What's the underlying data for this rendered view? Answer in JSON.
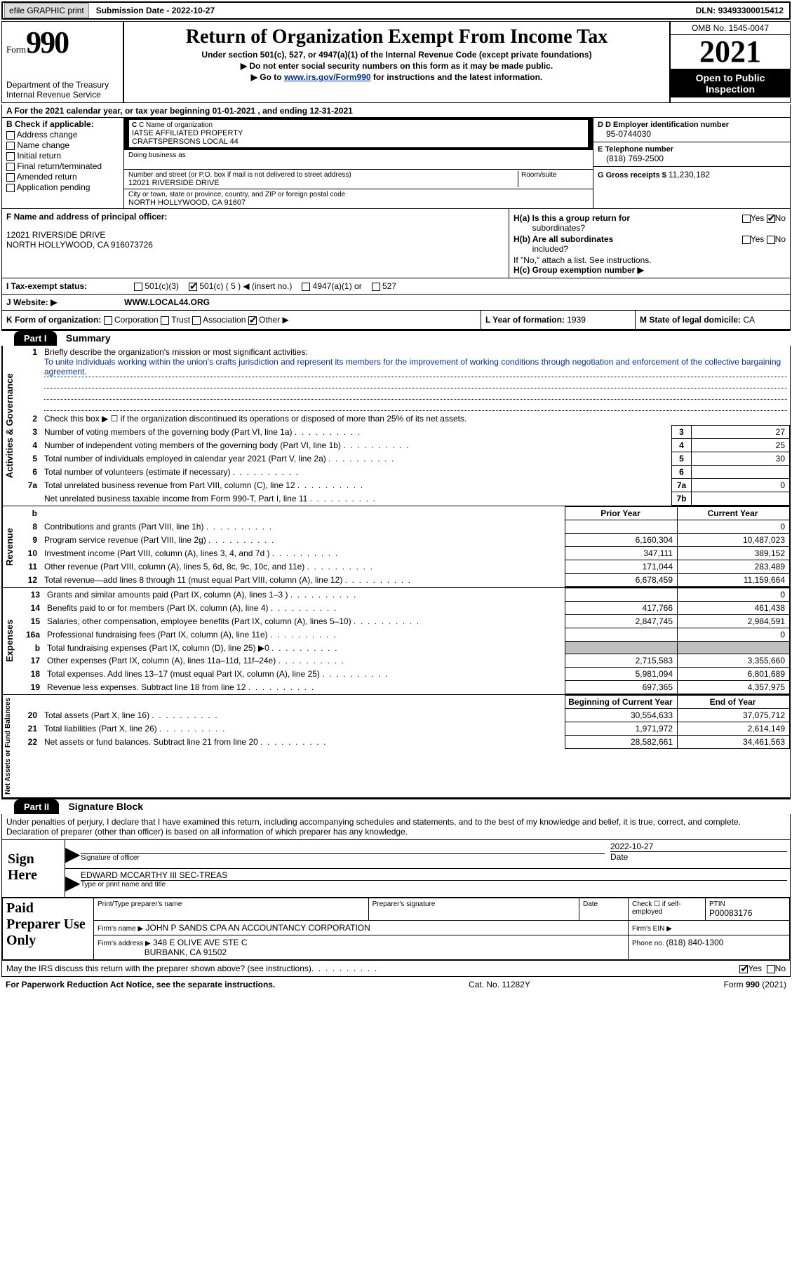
{
  "topbar": {
    "efile_btn": "efile GRAPHIC print",
    "submission_date_label": "Submission Date - ",
    "submission_date": "2022-10-27",
    "dln_label": "DLN: ",
    "dln": "93493300015412"
  },
  "header": {
    "form_label": "Form",
    "form_number": "990",
    "dept": "Department of the Treasury",
    "irs": "Internal Revenue Service",
    "title": "Return of Organization Exempt From Income Tax",
    "sub": "Under section 501(c), 527, or 4947(a)(1) of the Internal Revenue Code (except private foundations)",
    "arrow1": "Do not enter social security numbers on this form as it may be made public.",
    "arrow2_prefix": "Go to ",
    "arrow2_link": "www.irs.gov/Form990",
    "arrow2_suffix": " for instructions and the latest information.",
    "omb": "OMB No. 1545-0047",
    "year": "2021",
    "inspection1": "Open to Public",
    "inspection2": "Inspection"
  },
  "lineA": {
    "text_prefix": "A For the 2021 calendar year, or tax year beginning ",
    "begin": "01-01-2021",
    "mid": " , and ending ",
    "end": "12-31-2021"
  },
  "colB": {
    "header": "B Check if applicable:",
    "items": [
      "Address change",
      "Name change",
      "Initial return",
      "Final return/terminated",
      "Amended return",
      "Application pending"
    ]
  },
  "colC": {
    "name_label": "C Name of organization",
    "name1": "IATSE AFFILIATED PROPERTY",
    "name2": "CRAFTSPERSONS LOCAL 44",
    "dba_label": "Doing business as",
    "addr_label": "Number and street (or P.O. box if mail is not delivered to street address)",
    "room_label": "Room/suite",
    "addr": "12021 RIVERSIDE DRIVE",
    "city_label": "City or town, state or province, country, and ZIP or foreign postal code",
    "city": "NORTH HOLLYWOOD, CA  91607"
  },
  "colD": {
    "ein_label": "D Employer identification number",
    "ein": "95-0744030",
    "phone_label": "E Telephone number",
    "phone": "(818) 769-2500",
    "gross_label": "G Gross receipts $ ",
    "gross": "11,230,182"
  },
  "colF": {
    "label": "F Name and address of principal officer:",
    "line1": "12021 RIVERSIDE DRIVE",
    "line2": "NORTH HOLLYWOOD, CA  916073726"
  },
  "colH": {
    "a_label": "H(a)  Is this a group return for",
    "a_label2": "subordinates?",
    "b_label": "H(b)  Are all subordinates",
    "b_label2": "included?",
    "b_note": "If \"No,\" attach a list. See instructions.",
    "c_label": "H(c)  Group exemption number ▶",
    "yes": "Yes",
    "no": "No"
  },
  "rowI": {
    "label": "I  Tax-exempt status:",
    "opt1": "501(c)(3)",
    "opt2_pre": "501(c) ( ",
    "opt2_val": "5",
    "opt2_post": " ) ◀ (insert no.)",
    "opt3": "4947(a)(1) or",
    "opt4": "527"
  },
  "rowJ": {
    "label": "J  Website: ▶",
    "value": "WWW.LOCAL44.ORG"
  },
  "rowK": {
    "label": "K Form of organization:",
    "opts": [
      "Corporation",
      "Trust",
      "Association",
      "Other ▶"
    ],
    "checked_idx": 3,
    "l_label": "L Year of formation: ",
    "l_val": "1939",
    "m_label": "M State of legal domicile: ",
    "m_val": "CA"
  },
  "part1": {
    "part_label": "Part I",
    "title": "Summary",
    "q1_label": "Briefly describe the organization's mission or most significant activities:",
    "q1_text": "To unite individuals working within the union's crafts jurisdiction and represent its members for the improvement of working conditions through negotiation and enforcement of the collective bargaining agreement.",
    "q2": "Check this box ▶ ☐ if the organization discontinued its operations or disposed of more than 25% of its net assets.",
    "tabs": {
      "activities": "Activities & Governance",
      "revenue": "Revenue",
      "expenses": "Expenses",
      "netassets": "Net Assets or Fund Balances"
    },
    "lines_top": [
      {
        "n": "3",
        "d": "Number of voting members of the governing body (Part VI, line 1a)",
        "box": "3",
        "v": "27"
      },
      {
        "n": "4",
        "d": "Number of independent voting members of the governing body (Part VI, line 1b)",
        "box": "4",
        "v": "25"
      },
      {
        "n": "5",
        "d": "Total number of individuals employed in calendar year 2021 (Part V, line 2a)",
        "box": "5",
        "v": "30"
      },
      {
        "n": "6",
        "d": "Total number of volunteers (estimate if necessary)",
        "box": "6",
        "v": ""
      },
      {
        "n": "7a",
        "d": "Total unrelated business revenue from Part VIII, column (C), line 12",
        "box": "7a",
        "v": "0"
      },
      {
        "n": "",
        "d": "Net unrelated business taxable income from Form 990-T, Part I, line 11",
        "box": "7b",
        "v": ""
      }
    ],
    "prior_hdr": "Prior Year",
    "current_hdr": "Current Year",
    "lines_rev": [
      {
        "n": "8",
        "d": "Contributions and grants (Part VIII, line 1h)",
        "p": "",
        "c": "0"
      },
      {
        "n": "9",
        "d": "Program service revenue (Part VIII, line 2g)",
        "p": "6,160,304",
        "c": "10,487,023"
      },
      {
        "n": "10",
        "d": "Investment income (Part VIII, column (A), lines 3, 4, and 7d )",
        "p": "347,111",
        "c": "389,152"
      },
      {
        "n": "11",
        "d": "Other revenue (Part VIII, column (A), lines 5, 6d, 8c, 9c, 10c, and 11e)",
        "p": "171,044",
        "c": "283,489"
      },
      {
        "n": "12",
        "d": "Total revenue—add lines 8 through 11 (must equal Part VIII, column (A), line 12)",
        "p": "6,678,459",
        "c": "11,159,664"
      }
    ],
    "lines_exp": [
      {
        "n": "13",
        "d": "Grants and similar amounts paid (Part IX, column (A), lines 1–3 )",
        "p": "",
        "c": "0"
      },
      {
        "n": "14",
        "d": "Benefits paid to or for members (Part IX, column (A), line 4)",
        "p": "417,766",
        "c": "461,438"
      },
      {
        "n": "15",
        "d": "Salaries, other compensation, employee benefits (Part IX, column (A), lines 5–10)",
        "p": "2,847,745",
        "c": "2,984,591"
      },
      {
        "n": "16a",
        "d": "Professional fundraising fees (Part IX, column (A), line 11e)",
        "p": "",
        "c": "0"
      },
      {
        "n": "b",
        "d": "Total fundraising expenses (Part IX, column (D), line 25) ▶0",
        "p": "SHADE",
        "c": "SHADE"
      },
      {
        "n": "17",
        "d": "Other expenses (Part IX, column (A), lines 11a–11d, 11f–24e)",
        "p": "2,715,583",
        "c": "3,355,660"
      },
      {
        "n": "18",
        "d": "Total expenses. Add lines 13–17 (must equal Part IX, column (A), line 25)",
        "p": "5,981,094",
        "c": "6,801,689"
      },
      {
        "n": "19",
        "d": "Revenue less expenses. Subtract line 18 from line 12",
        "p": "697,365",
        "c": "4,357,975"
      }
    ],
    "begin_hdr": "Beginning of Current Year",
    "end_hdr": "End of Year",
    "lines_net": [
      {
        "n": "20",
        "d": "Total assets (Part X, line 16)",
        "p": "30,554,633",
        "c": "37,075,712"
      },
      {
        "n": "21",
        "d": "Total liabilities (Part X, line 26)",
        "p": "1,971,972",
        "c": "2,614,149"
      },
      {
        "n": "22",
        "d": "Net assets or fund balances. Subtract line 21 from line 20",
        "p": "28,582,661",
        "c": "34,461,563"
      }
    ]
  },
  "part2": {
    "part_label": "Part II",
    "title": "Signature Block",
    "declaration": "Under penalties of perjury, I declare that I have examined this return, including accompanying schedules and statements, and to the best of my knowledge and belief, it is true, correct, and complete. Declaration of preparer (other than officer) is based on all information of which preparer has any knowledge.",
    "sign_here": "Sign Here",
    "sig_officer_label": "Signature of officer",
    "sig_date": "2022-10-27",
    "date_label": "Date",
    "officer_name": "EDWARD MCCARTHY III SEC-TREAS",
    "name_title_label": "Type or print name and title",
    "paid_preparer": "Paid Preparer Use Only",
    "prep_name_label": "Print/Type preparer's name",
    "prep_sig_label": "Preparer's signature",
    "prep_date_label": "Date",
    "check_if_label": "Check ☐ if self-employed",
    "ptin_label": "PTIN",
    "ptin": "P00083176",
    "firm_name_label": "Firm's name   ▶",
    "firm_name": "JOHN P SANDS CPA AN ACCOUNTANCY CORPORATION",
    "firm_ein_label": "Firm's EIN ▶",
    "firm_addr_label": "Firm's address ▶",
    "firm_addr1": "348 E OLIVE AVE STE C",
    "firm_addr2": "BURBANK, CA  91502",
    "firm_phone_label": "Phone no. ",
    "firm_phone": "(818) 840-1300"
  },
  "footer": {
    "discuss": "May the IRS discuss this return with the preparer shown above? (see instructions)",
    "yes": "Yes",
    "no": "No",
    "paperwork": "For Paperwork Reduction Act Notice, see the separate instructions.",
    "catno": "Cat. No. 11282Y",
    "formref": "Form 990 (2021)"
  }
}
